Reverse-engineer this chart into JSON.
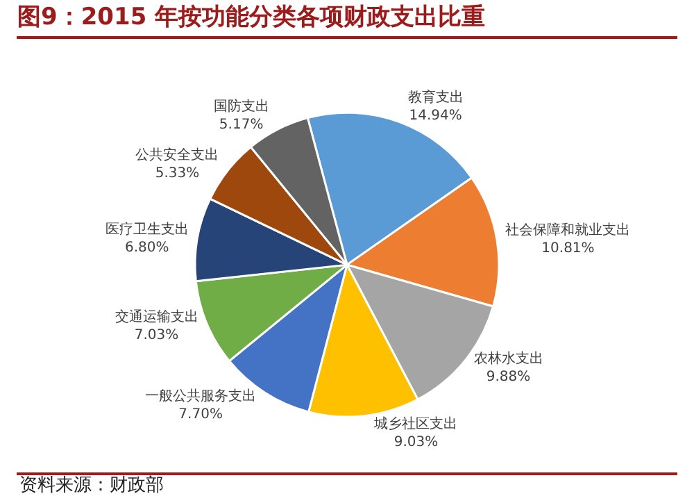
{
  "chart_data": {
    "type": "pie",
    "title": "图9：2015 年按功能分类各项财政支出比重",
    "categories": [
      "教育支出",
      "社会保障和就业支出",
      "农林水支出",
      "城乡社区支出",
      "一般公共服务支出",
      "交通运输支出",
      "医疗卫生支出",
      "公共安全支出",
      "国防支出"
    ],
    "values": [
      14.94,
      10.81,
      9.88,
      9.03,
      7.7,
      7.03,
      6.8,
      5.33,
      5.17
    ],
    "value_labels": [
      "14.94%",
      "10.81%",
      "9.88%",
      "9.03%",
      "7.70%",
      "7.03%",
      "6.80%",
      "5.33%",
      "5.17%"
    ],
    "colors": [
      "#5b9bd5",
      "#ed7d31",
      "#a5a5a5",
      "#ffc000",
      "#4472c4",
      "#70ad47",
      "#264478",
      "#9e480e",
      "#636363"
    ],
    "annotations": [
      "资料来源：财政部"
    ],
    "legend": false
  }
}
